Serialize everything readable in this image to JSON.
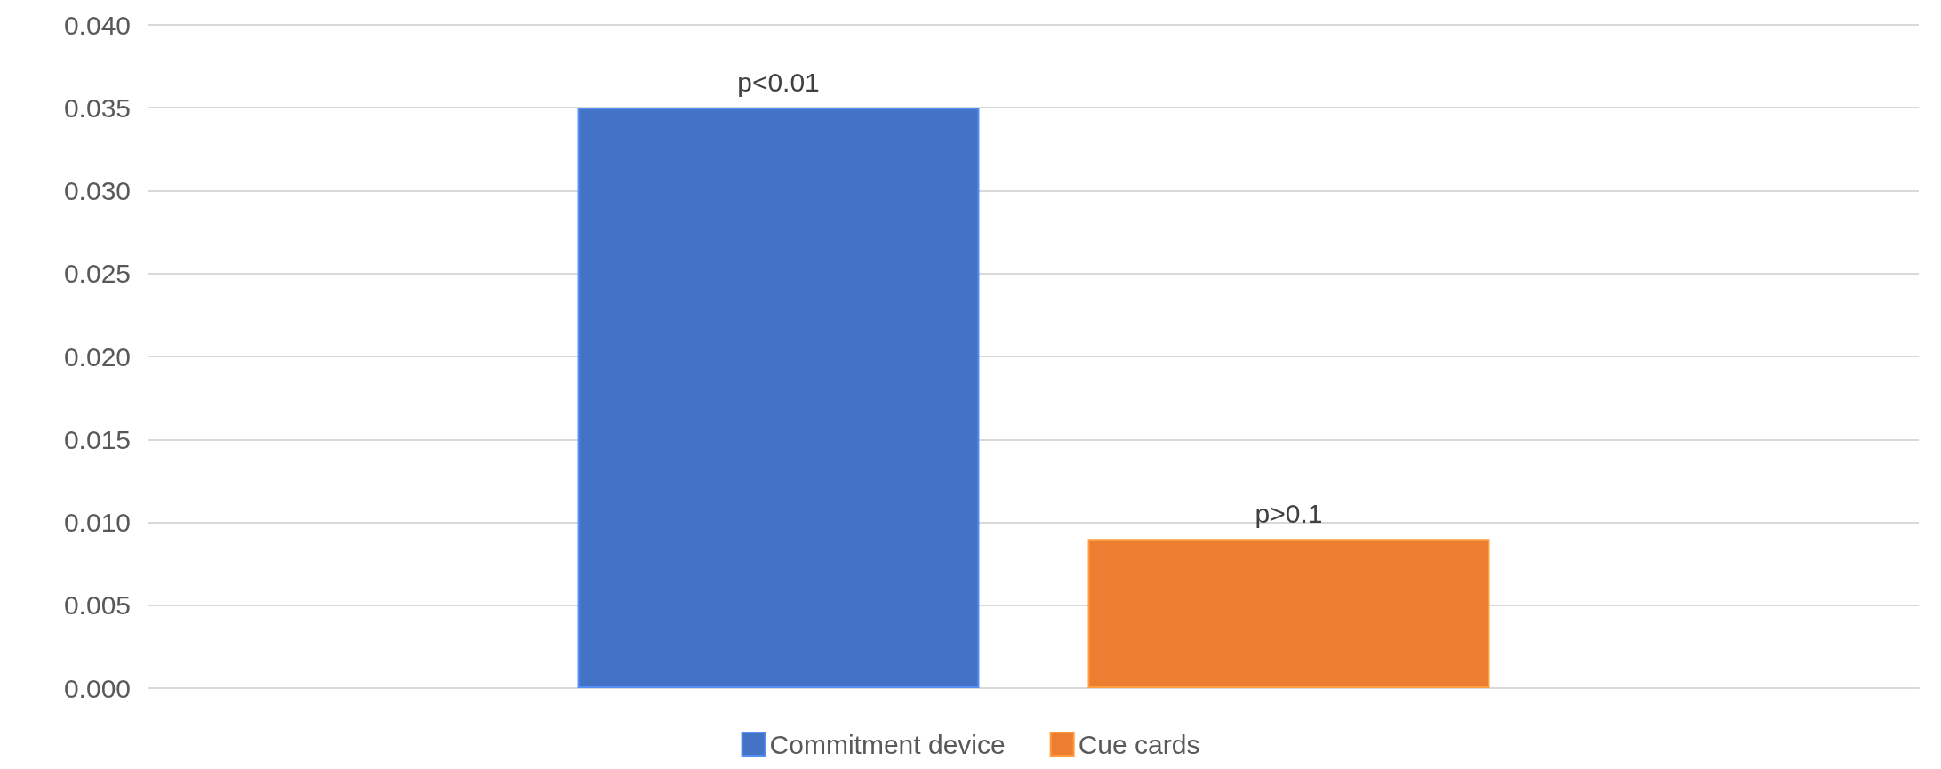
{
  "chart_data": {
    "type": "bar",
    "categories": [
      null
    ],
    "series": [
      {
        "name": "Commitment device",
        "color": "#4472c4",
        "values": [
          0.035
        ],
        "value_labels": [
          "p<0.01"
        ]
      },
      {
        "name": "Cue cards",
        "color": "#ed7d31",
        "values": [
          0.009
        ],
        "value_labels": [
          "p>0.1"
        ]
      }
    ],
    "ylim": [
      0,
      0.04
    ],
    "yticks": [
      {
        "value": 0,
        "label": "0.000"
      },
      {
        "value": 0.005,
        "label": "0.005"
      },
      {
        "value": 0.01,
        "label": "0.010"
      },
      {
        "value": 0.015,
        "label": "0.015"
      },
      {
        "value": 0.02,
        "label": "0.020"
      },
      {
        "value": 0.025,
        "label": "0.025"
      },
      {
        "value": 0.03,
        "label": "0.030"
      },
      {
        "value": 0.035,
        "label": "0.035"
      },
      {
        "value": 0.04,
        "label": "0.040"
      }
    ],
    "grid": "y",
    "legend": "bottom"
  }
}
